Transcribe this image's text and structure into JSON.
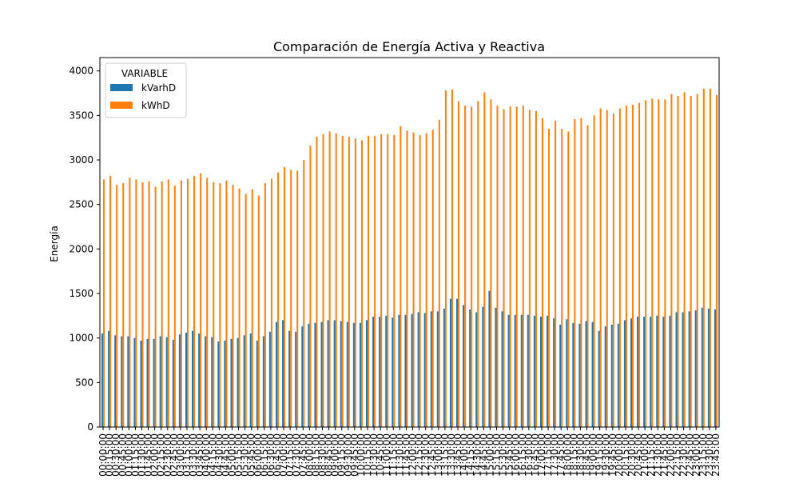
{
  "chart_data": {
    "type": "bar",
    "title": "Comparación de Energía Activa y Reactiva",
    "xlabel": "",
    "ylabel": "Energía",
    "ylim": [
      0,
      4150
    ],
    "yticks": [
      0,
      500,
      1000,
      1500,
      2000,
      2500,
      3000,
      3500,
      4000
    ],
    "grid": false,
    "legend": {
      "title": "VARIABLE",
      "placement": "top-left"
    },
    "categories": [
      "00:00:00",
      "00:15:00",
      "00:30:00",
      "00:45:00",
      "01:00:00",
      "01:15:00",
      "01:30:00",
      "01:45:00",
      "02:00:00",
      "02:15:00",
      "02:30:00",
      "02:45:00",
      "03:00:00",
      "03:15:00",
      "03:30:00",
      "03:45:00",
      "04:00:00",
      "04:15:00",
      "04:30:00",
      "04:45:00",
      "05:00:00",
      "05:15:00",
      "05:30:00",
      "05:45:00",
      "06:00:00",
      "06:15:00",
      "06:30:00",
      "06:45:00",
      "07:00:00",
      "07:15:00",
      "07:30:00",
      "07:45:00",
      "08:00:00",
      "08:15:00",
      "08:30:00",
      "08:45:00",
      "09:00:00",
      "09:15:00",
      "09:30:00",
      "09:45:00",
      "10:00:00",
      "10:15:00",
      "10:30:00",
      "10:45:00",
      "11:00:00",
      "11:15:00",
      "11:30:00",
      "11:45:00",
      "12:00:00",
      "12:15:00",
      "12:30:00",
      "12:45:00",
      "13:00:00",
      "13:15:00",
      "13:30:00",
      "13:45:00",
      "14:00:00",
      "14:15:00",
      "14:30:00",
      "14:45:00",
      "15:00:00",
      "15:15:00",
      "15:30:00",
      "15:45:00",
      "16:00:00",
      "16:15:00",
      "16:30:00",
      "16:45:00",
      "17:00:00",
      "17:15:00",
      "17:30:00",
      "17:45:00",
      "18:00:00",
      "18:15:00",
      "18:30:00",
      "18:45:00",
      "19:00:00",
      "19:15:00",
      "19:30:00",
      "19:45:00",
      "20:00:00",
      "20:15:00",
      "20:30:00",
      "20:45:00",
      "21:00:00",
      "21:15:00",
      "21:30:00",
      "21:45:00",
      "22:00:00",
      "22:15:00",
      "22:30:00",
      "22:45:00",
      "23:00:00",
      "23:15:00",
      "23:30:00",
      "23:45:00"
    ],
    "series": [
      {
        "name": "kVarhD",
        "color": "#1f77b4",
        "values": [
          1050,
          1080,
          1030,
          1020,
          1020,
          1000,
          970,
          990,
          990,
          1020,
          1010,
          980,
          1040,
          1060,
          1080,
          1050,
          1020,
          1010,
          960,
          970,
          990,
          1000,
          1030,
          1050,
          970,
          1020,
          1070,
          1180,
          1200,
          1080,
          1070,
          1130,
          1160,
          1170,
          1180,
          1200,
          1200,
          1190,
          1180,
          1170,
          1170,
          1200,
          1240,
          1240,
          1250,
          1230,
          1260,
          1260,
          1270,
          1290,
          1280,
          1300,
          1300,
          1330,
          1440,
          1440,
          1370,
          1320,
          1290,
          1350,
          1530,
          1340,
          1300,
          1260,
          1260,
          1260,
          1260,
          1250,
          1240,
          1250,
          1220,
          1150,
          1210,
          1170,
          1160,
          1190,
          1180,
          1080,
          1130,
          1150,
          1160,
          1200,
          1220,
          1240,
          1240,
          1240,
          1250,
          1240,
          1250,
          1290,
          1290,
          1300,
          1310,
          1340,
          1330,
          1320
        ]
      },
      {
        "name": "kWhD",
        "color": "#ff7f0e",
        "values": [
          2780,
          2820,
          2720,
          2740,
          2800,
          2780,
          2750,
          2760,
          2700,
          2760,
          2780,
          2710,
          2770,
          2790,
          2820,
          2850,
          2800,
          2750,
          2740,
          2770,
          2720,
          2680,
          2620,
          2670,
          2600,
          2740,
          2790,
          2860,
          2920,
          2890,
          2880,
          3000,
          3160,
          3260,
          3290,
          3320,
          3300,
          3270,
          3260,
          3240,
          3220,
          3270,
          3270,
          3290,
          3290,
          3280,
          3380,
          3330,
          3310,
          3280,
          3300,
          3340,
          3450,
          3780,
          3790,
          3660,
          3610,
          3600,
          3660,
          3760,
          3680,
          3610,
          3570,
          3600,
          3600,
          3610,
          3560,
          3550,
          3470,
          3350,
          3440,
          3350,
          3320,
          3460,
          3470,
          3390,
          3500,
          3580,
          3560,
          3520,
          3580,
          3610,
          3620,
          3640,
          3670,
          3690,
          3680,
          3680,
          3740,
          3720,
          3760,
          3720,
          3740,
          3800,
          3800,
          3730
        ]
      }
    ]
  }
}
